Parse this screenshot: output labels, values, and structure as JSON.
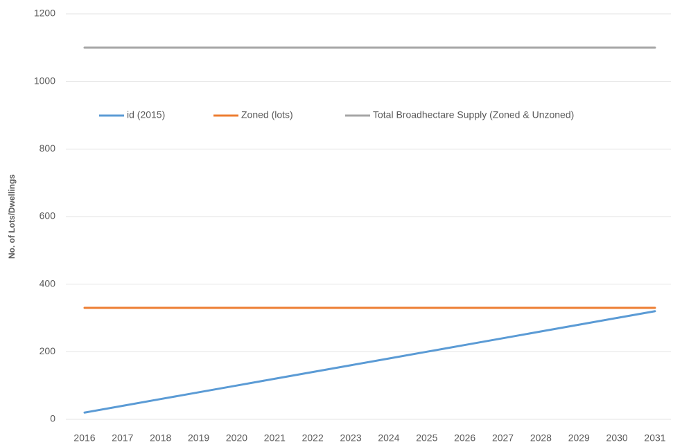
{
  "chart_data": {
    "type": "line",
    "y_label": "No. of Lots/Dwellings",
    "categories": [
      "2016",
      "2017",
      "2018",
      "2019",
      "2020",
      "2021",
      "2022",
      "2023",
      "2024",
      "2025",
      "2026",
      "2027",
      "2028",
      "2029",
      "2030",
      "2031"
    ],
    "series": [
      {
        "name": "id (2015)",
        "color": "#5b9bd5",
        "values": [
          20,
          40,
          60,
          80,
          100,
          120,
          140,
          160,
          180,
          200,
          220,
          240,
          260,
          280,
          300,
          320
        ]
      },
      {
        "name": "Zoned (lots)",
        "color": "#ed7d31",
        "values": [
          330,
          330,
          330,
          330,
          330,
          330,
          330,
          330,
          330,
          330,
          330,
          330,
          330,
          330,
          330,
          330
        ]
      },
      {
        "name": "Total Broadhectare Supply (Zoned & Unzoned)",
        "color": "#a5a5a5",
        "values": [
          1100,
          1100,
          1100,
          1100,
          1100,
          1100,
          1100,
          1100,
          1100,
          1100,
          1100,
          1100,
          1100,
          1100,
          1100,
          1100
        ]
      }
    ],
    "ylim": [
      0,
      1200
    ],
    "yticks": [
      0,
      200,
      400,
      600,
      800,
      1000,
      1200
    ],
    "grid": true,
    "legend": "top"
  }
}
